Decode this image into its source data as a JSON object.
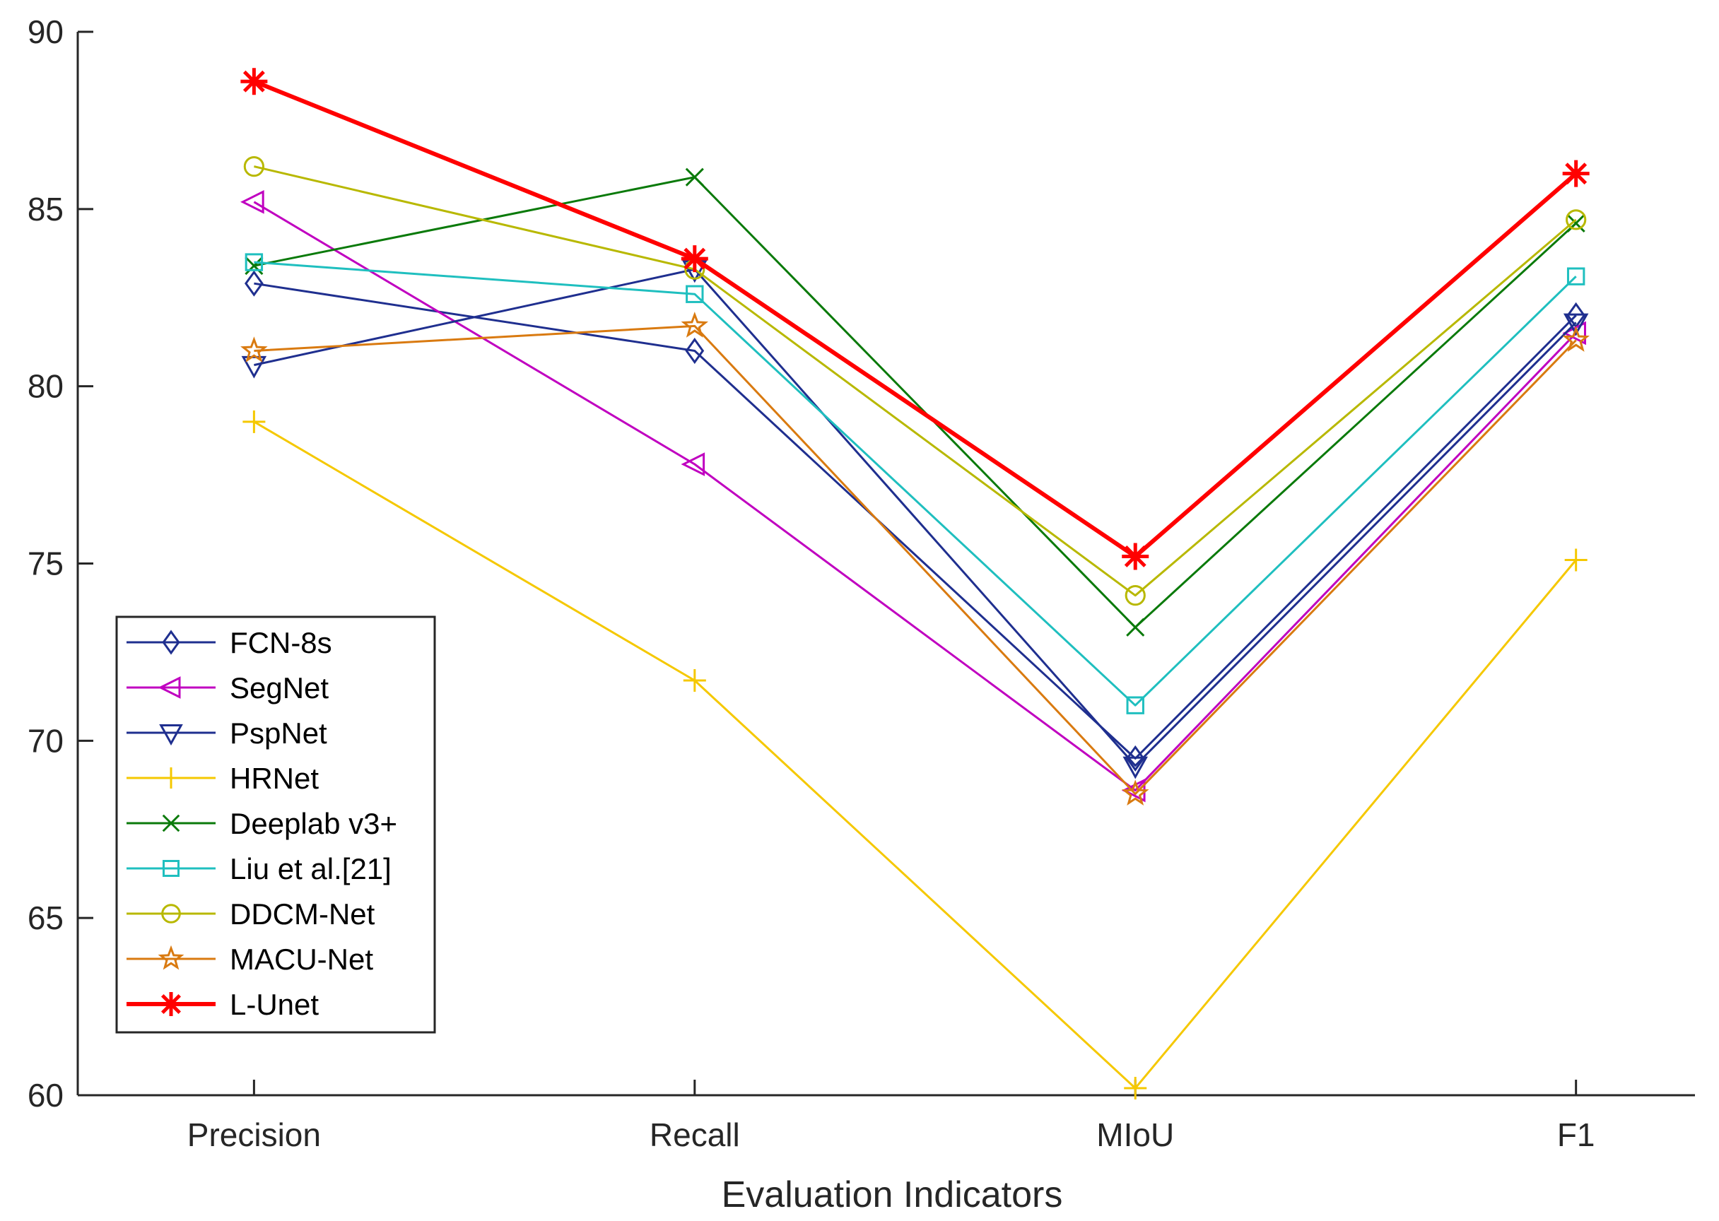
{
  "chart_data": {
    "type": "line",
    "title": "",
    "xlabel": "Evaluation Indicators",
    "ylabel": "",
    "categories": [
      "Precision",
      "Recall",
      "MIoU",
      "F1"
    ],
    "ylim": [
      60,
      90
    ],
    "yticks": [
      60,
      65,
      70,
      75,
      80,
      85,
      90
    ],
    "grid": false,
    "legend_position": "bottom-left",
    "series": [
      {
        "name": "FCN-8s",
        "values": [
          82.9,
          81.0,
          69.5,
          82.0
        ],
        "color": "#1f2f8f",
        "marker": "diamond",
        "bold": false
      },
      {
        "name": "SegNet",
        "values": [
          85.2,
          77.8,
          68.6,
          81.5
        ],
        "color": "#c000c0",
        "marker": "triangle-left",
        "bold": false
      },
      {
        "name": "PspNet",
        "values": [
          80.6,
          83.3,
          69.3,
          81.8
        ],
        "color": "#1f2f8f",
        "marker": "triangle-down",
        "bold": false
      },
      {
        "name": "HRNet",
        "values": [
          79.0,
          71.7,
          60.2,
          75.1
        ],
        "color": "#f5c800",
        "marker": "plus",
        "bold": false
      },
      {
        "name": "Deeplab v3+",
        "values": [
          83.4,
          85.9,
          73.2,
          84.6
        ],
        "color": "#0a7a0a",
        "marker": "x",
        "bold": false
      },
      {
        "name": "Liu et al.[21]",
        "values": [
          83.5,
          82.6,
          71.0,
          83.1
        ],
        "color": "#1fbfbf",
        "marker": "square",
        "bold": false
      },
      {
        "name": "DDCM-Net",
        "values": [
          86.2,
          83.3,
          74.1,
          84.7
        ],
        "color": "#b8b800",
        "marker": "circle",
        "bold": false
      },
      {
        "name": "MACU-Net",
        "values": [
          81.0,
          81.7,
          68.5,
          81.3
        ],
        "color": "#d97a10",
        "marker": "star",
        "bold": false
      },
      {
        "name": "L-Unet",
        "values": [
          88.6,
          83.6,
          75.2,
          86.0
        ],
        "color": "#ff0000",
        "marker": "asterisk",
        "bold": true
      }
    ]
  }
}
